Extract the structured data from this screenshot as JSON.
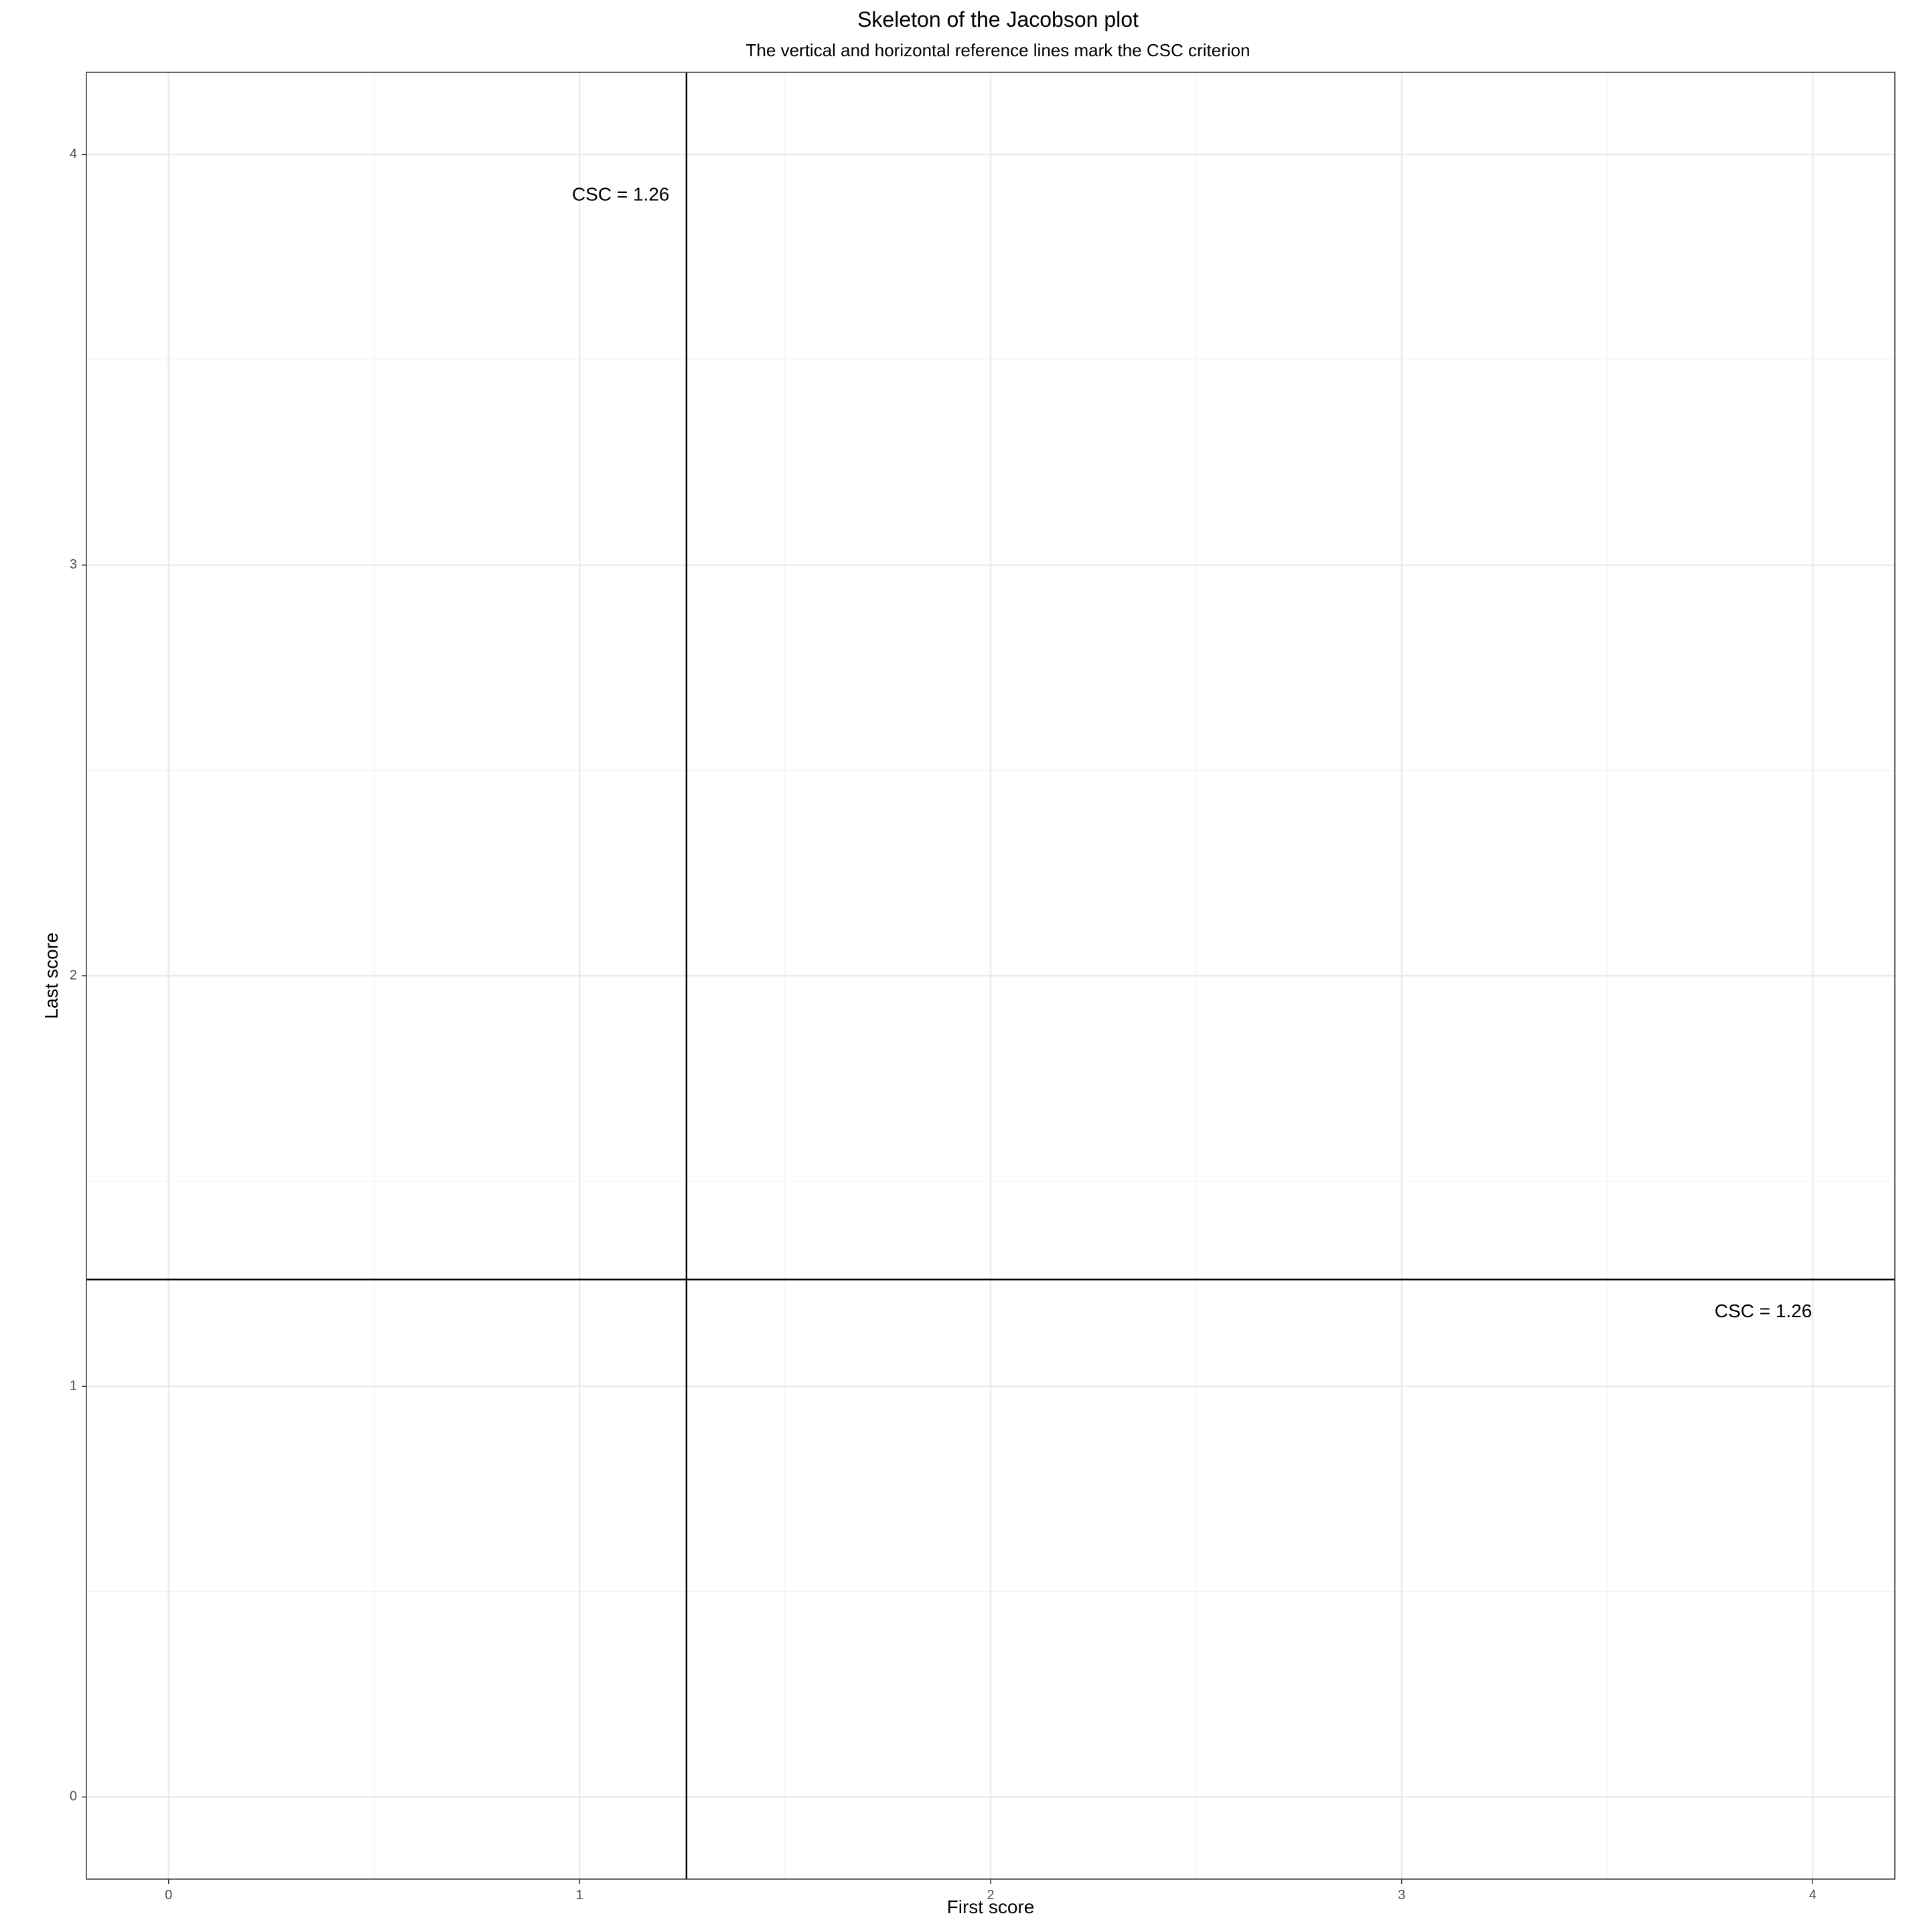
{
  "chart_data": {
    "type": "scatter",
    "title": "Skeleton of the Jacobson plot",
    "subtitle": "The vertical and horizontal reference lines mark the CSC criterion",
    "xlabel": "First score",
    "ylabel": "Last score",
    "xlim": [
      -0.2,
      4.2
    ],
    "ylim": [
      -0.2,
      4.2
    ],
    "x_ticks": [
      0,
      1,
      2,
      3,
      4
    ],
    "y_ticks": [
      0,
      1,
      2,
      3,
      4
    ],
    "x_tick_labels": [
      "0",
      "1",
      "2",
      "3",
      "4"
    ],
    "y_tick_labels": [
      "0",
      "1",
      "2",
      "3",
      "4"
    ],
    "grid": true,
    "series": [],
    "reference_lines": [
      {
        "orientation": "vertical",
        "x": 1.26
      },
      {
        "orientation": "horizontal",
        "y": 1.26
      }
    ],
    "annotations": [
      {
        "text": "CSC = 1.26",
        "x": 1.1,
        "y": 3.9
      },
      {
        "text": "CSC = 1.26",
        "x": 3.88,
        "y": 1.18
      }
    ],
    "colors": {
      "panel_border": "#333333",
      "grid_major": "#ebebeb",
      "grid_minor": "#f5f5f5",
      "reference_line": "#000000"
    }
  }
}
